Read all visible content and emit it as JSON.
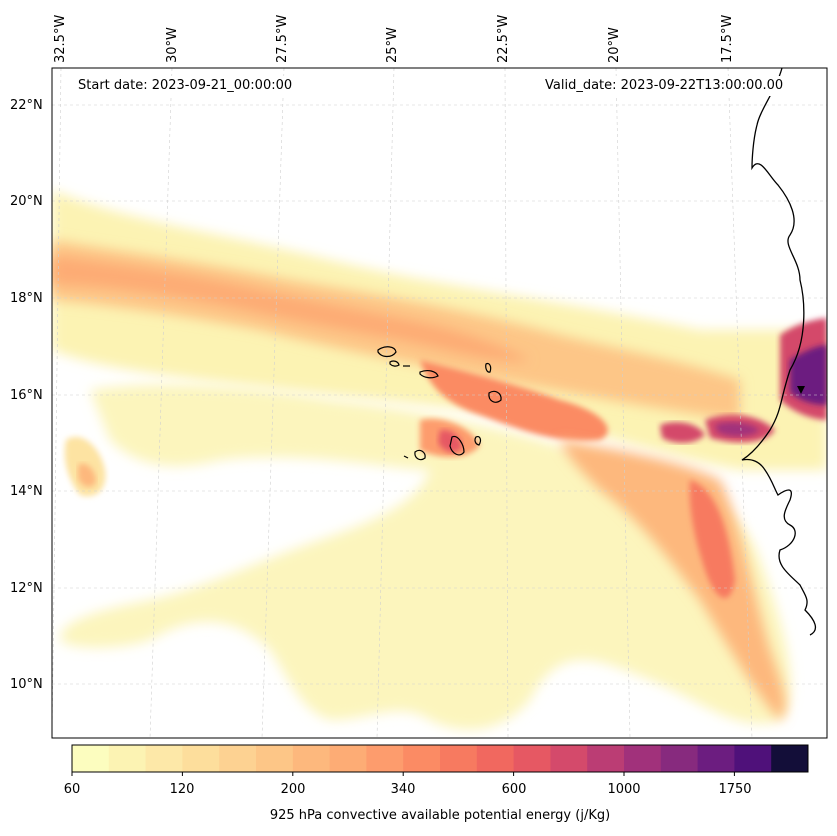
{
  "map": {
    "start_date": "Start date: 2023-09-21_00:00:00",
    "valid_date": "Valid_date: 2023-09-22T13:00:00.00"
  },
  "axes": {
    "lon_labels": [
      "32.5°W",
      "30°W",
      "27.5°W",
      "25°W",
      "22.5°W",
      "20°W",
      "17.5°W"
    ],
    "lat_labels": [
      "22°N",
      "20°N",
      "18°N",
      "16°N",
      "14°N",
      "12°N",
      "10°N"
    ]
  },
  "colorbar": {
    "title": "925 hPa convective available potential energy (j/Kg)",
    "tick_labels": [
      "60",
      "120",
      "200",
      "340",
      "600",
      "1000",
      "1750"
    ],
    "colors": [
      "#fcfdbf",
      "#fcf3b3",
      "#fde8a8",
      "#fdde9c",
      "#fdd292",
      "#fdc687",
      "#fdb87d",
      "#fdac75",
      "#fd9c6d",
      "#fb8b64",
      "#f77a60",
      "#f1685f",
      "#e65863",
      "#d44a6b",
      "#bb3d74",
      "#a1317b",
      "#872a7e",
      "#6c1d80",
      "#4f117a",
      "#130e39"
    ]
  }
}
